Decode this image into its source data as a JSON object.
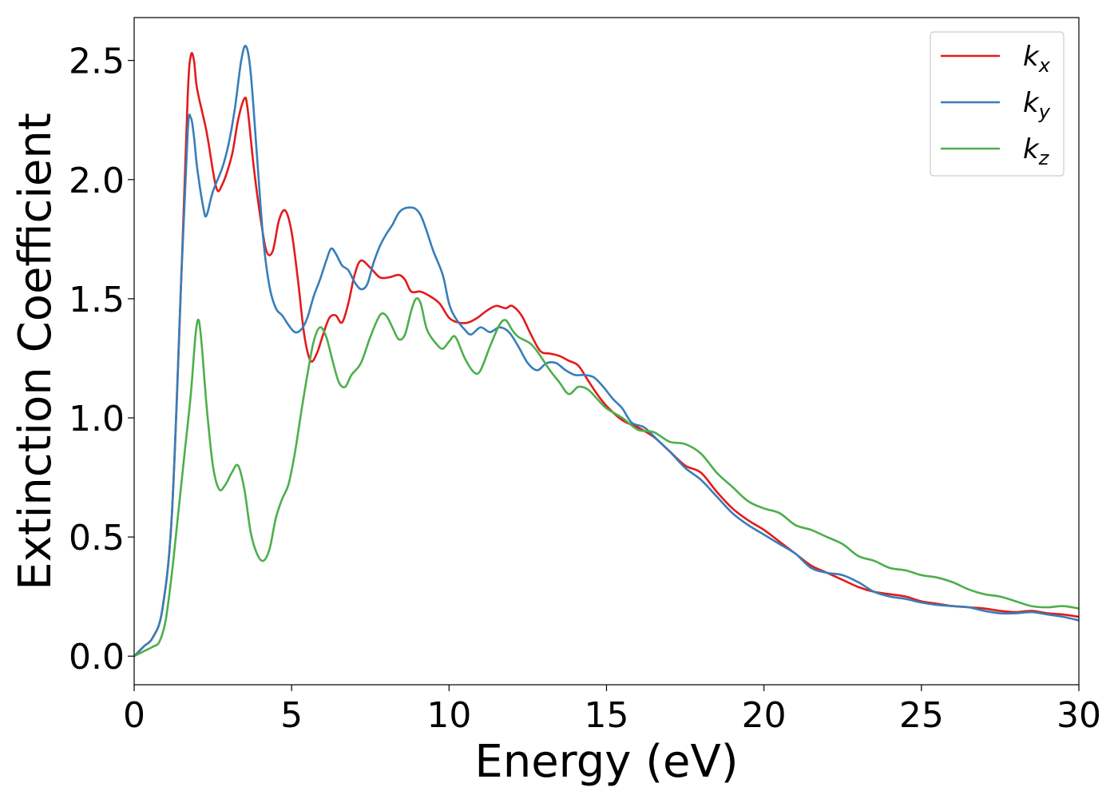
{
  "chart_data": {
    "type": "line",
    "title": "",
    "xlabel": "Energy (eV)",
    "ylabel": "Extinction Coefficient",
    "xlim": [
      0,
      30
    ],
    "ylim": [
      -0.12,
      2.68
    ],
    "xticks": [
      0,
      5,
      10,
      15,
      20,
      25,
      30
    ],
    "xtick_labels": [
      "0",
      "5",
      "10",
      "15",
      "20",
      "25",
      "30"
    ],
    "yticks": [
      0.0,
      0.5,
      1.0,
      1.5,
      2.0,
      2.5
    ],
    "ytick_labels": [
      "0.0",
      "0.5",
      "1.0",
      "1.5",
      "2.0",
      "2.5"
    ],
    "grid": false,
    "legend_position": "top-right",
    "series": [
      {
        "name": "k",
        "subscript": "x",
        "color": "#e41a1c",
        "points": [
          [
            0,
            0
          ],
          [
            0.3,
            0.04
          ],
          [
            0.6,
            0.08
          ],
          [
            0.9,
            0.2
          ],
          [
            1.2,
            0.6
          ],
          [
            1.5,
            1.6
          ],
          [
            1.7,
            2.35
          ],
          [
            1.8,
            2.52
          ],
          [
            1.9,
            2.5
          ],
          [
            2.0,
            2.38
          ],
          [
            2.3,
            2.2
          ],
          [
            2.6,
            1.97
          ],
          [
            2.8,
            1.98
          ],
          [
            3.1,
            2.1
          ],
          [
            3.3,
            2.25
          ],
          [
            3.5,
            2.34
          ],
          [
            3.6,
            2.3
          ],
          [
            3.8,
            2.05
          ],
          [
            4.0,
            1.85
          ],
          [
            4.2,
            1.7
          ],
          [
            4.4,
            1.7
          ],
          [
            4.6,
            1.83
          ],
          [
            4.8,
            1.87
          ],
          [
            5.0,
            1.78
          ],
          [
            5.2,
            1.58
          ],
          [
            5.4,
            1.35
          ],
          [
            5.6,
            1.24
          ],
          [
            5.8,
            1.27
          ],
          [
            6.0,
            1.35
          ],
          [
            6.2,
            1.42
          ],
          [
            6.4,
            1.43
          ],
          [
            6.6,
            1.4
          ],
          [
            6.8,
            1.48
          ],
          [
            7.0,
            1.6
          ],
          [
            7.2,
            1.66
          ],
          [
            7.5,
            1.63
          ],
          [
            7.8,
            1.59
          ],
          [
            8.1,
            1.59
          ],
          [
            8.4,
            1.6
          ],
          [
            8.6,
            1.58
          ],
          [
            8.8,
            1.53
          ],
          [
            9.1,
            1.53
          ],
          [
            9.4,
            1.51
          ],
          [
            9.7,
            1.48
          ],
          [
            10.0,
            1.42
          ],
          [
            10.3,
            1.4
          ],
          [
            10.6,
            1.4
          ],
          [
            10.9,
            1.42
          ],
          [
            11.2,
            1.45
          ],
          [
            11.5,
            1.47
          ],
          [
            11.8,
            1.46
          ],
          [
            12.0,
            1.47
          ],
          [
            12.3,
            1.43
          ],
          [
            12.6,
            1.35
          ],
          [
            12.9,
            1.28
          ],
          [
            13.2,
            1.27
          ],
          [
            13.5,
            1.26
          ],
          [
            13.8,
            1.24
          ],
          [
            14.1,
            1.22
          ],
          [
            14.4,
            1.16
          ],
          [
            14.7,
            1.1
          ],
          [
            15.0,
            1.05
          ],
          [
            15.5,
            0.99
          ],
          [
            16.0,
            0.96
          ],
          [
            16.5,
            0.92
          ],
          [
            17.0,
            0.86
          ],
          [
            17.5,
            0.8
          ],
          [
            18.0,
            0.77
          ],
          [
            18.5,
            0.69
          ],
          [
            19.0,
            0.62
          ],
          [
            19.5,
            0.57
          ],
          [
            20.0,
            0.53
          ],
          [
            20.5,
            0.48
          ],
          [
            21.0,
            0.43
          ],
          [
            21.5,
            0.38
          ],
          [
            22.0,
            0.35
          ],
          [
            22.5,
            0.32
          ],
          [
            23.0,
            0.29
          ],
          [
            23.5,
            0.27
          ],
          [
            24.0,
            0.26
          ],
          [
            24.5,
            0.25
          ],
          [
            25.0,
            0.23
          ],
          [
            25.5,
            0.22
          ],
          [
            26.0,
            0.21
          ],
          [
            26.5,
            0.205
          ],
          [
            27.0,
            0.2
          ],
          [
            27.5,
            0.19
          ],
          [
            28.0,
            0.185
          ],
          [
            28.5,
            0.19
          ],
          [
            29.0,
            0.18
          ],
          [
            29.5,
            0.175
          ],
          [
            30.0,
            0.165
          ]
        ]
      },
      {
        "name": "k",
        "subscript": "y",
        "color": "#377eb8",
        "points": [
          [
            0,
            0
          ],
          [
            0.3,
            0.04
          ],
          [
            0.6,
            0.08
          ],
          [
            0.9,
            0.2
          ],
          [
            1.2,
            0.6
          ],
          [
            1.5,
            1.6
          ],
          [
            1.7,
            2.2
          ],
          [
            1.8,
            2.26
          ],
          [
            1.9,
            2.18
          ],
          [
            2.0,
            2.05
          ],
          [
            2.2,
            1.88
          ],
          [
            2.3,
            1.85
          ],
          [
            2.5,
            1.95
          ],
          [
            2.8,
            2.05
          ],
          [
            3.0,
            2.15
          ],
          [
            3.2,
            2.3
          ],
          [
            3.4,
            2.5
          ],
          [
            3.55,
            2.56
          ],
          [
            3.7,
            2.45
          ],
          [
            3.9,
            2.1
          ],
          [
            4.1,
            1.75
          ],
          [
            4.3,
            1.55
          ],
          [
            4.5,
            1.46
          ],
          [
            4.7,
            1.43
          ],
          [
            4.9,
            1.39
          ],
          [
            5.1,
            1.36
          ],
          [
            5.3,
            1.37
          ],
          [
            5.5,
            1.42
          ],
          [
            5.7,
            1.51
          ],
          [
            5.9,
            1.58
          ],
          [
            6.1,
            1.66
          ],
          [
            6.25,
            1.71
          ],
          [
            6.4,
            1.69
          ],
          [
            6.6,
            1.64
          ],
          [
            6.8,
            1.62
          ],
          [
            7.0,
            1.57
          ],
          [
            7.2,
            1.54
          ],
          [
            7.4,
            1.56
          ],
          [
            7.6,
            1.65
          ],
          [
            7.8,
            1.72
          ],
          [
            8.0,
            1.77
          ],
          [
            8.2,
            1.81
          ],
          [
            8.4,
            1.86
          ],
          [
            8.6,
            1.88
          ],
          [
            8.9,
            1.88
          ],
          [
            9.1,
            1.85
          ],
          [
            9.3,
            1.78
          ],
          [
            9.5,
            1.7
          ],
          [
            9.8,
            1.6
          ],
          [
            10.0,
            1.48
          ],
          [
            10.2,
            1.42
          ],
          [
            10.5,
            1.37
          ],
          [
            10.7,
            1.35
          ],
          [
            11.0,
            1.38
          ],
          [
            11.3,
            1.36
          ],
          [
            11.6,
            1.38
          ],
          [
            11.9,
            1.36
          ],
          [
            12.2,
            1.3
          ],
          [
            12.5,
            1.23
          ],
          [
            12.8,
            1.2
          ],
          [
            13.1,
            1.23
          ],
          [
            13.4,
            1.23
          ],
          [
            13.7,
            1.2
          ],
          [
            14.0,
            1.18
          ],
          [
            14.3,
            1.18
          ],
          [
            14.6,
            1.17
          ],
          [
            14.9,
            1.13
          ],
          [
            15.2,
            1.08
          ],
          [
            15.5,
            1.04
          ],
          [
            15.8,
            0.98
          ],
          [
            16.2,
            0.96
          ],
          [
            16.6,
            0.91
          ],
          [
            17.0,
            0.86
          ],
          [
            17.5,
            0.79
          ],
          [
            18.0,
            0.74
          ],
          [
            18.5,
            0.67
          ],
          [
            19.0,
            0.6
          ],
          [
            19.5,
            0.55
          ],
          [
            20.0,
            0.51
          ],
          [
            20.5,
            0.47
          ],
          [
            21.0,
            0.43
          ],
          [
            21.5,
            0.37
          ],
          [
            22.0,
            0.35
          ],
          [
            22.5,
            0.34
          ],
          [
            23.0,
            0.31
          ],
          [
            23.5,
            0.27
          ],
          [
            24.0,
            0.25
          ],
          [
            24.5,
            0.24
          ],
          [
            25.0,
            0.225
          ],
          [
            25.5,
            0.215
          ],
          [
            26.0,
            0.21
          ],
          [
            26.5,
            0.205
          ],
          [
            27.0,
            0.19
          ],
          [
            27.5,
            0.18
          ],
          [
            28.0,
            0.18
          ],
          [
            28.5,
            0.185
          ],
          [
            29.0,
            0.175
          ],
          [
            29.5,
            0.165
          ],
          [
            30.0,
            0.15
          ]
        ]
      },
      {
        "name": "k",
        "subscript": "z",
        "color": "#4daf4a",
        "points": [
          [
            0,
            0
          ],
          [
            0.3,
            0.02
          ],
          [
            0.6,
            0.04
          ],
          [
            0.8,
            0.06
          ],
          [
            1.0,
            0.15
          ],
          [
            1.2,
            0.35
          ],
          [
            1.4,
            0.6
          ],
          [
            1.6,
            0.85
          ],
          [
            1.8,
            1.1
          ],
          [
            1.95,
            1.35
          ],
          [
            2.05,
            1.41
          ],
          [
            2.15,
            1.3
          ],
          [
            2.3,
            1.05
          ],
          [
            2.5,
            0.8
          ],
          [
            2.7,
            0.7
          ],
          [
            2.9,
            0.72
          ],
          [
            3.1,
            0.77
          ],
          [
            3.3,
            0.8
          ],
          [
            3.5,
            0.7
          ],
          [
            3.7,
            0.52
          ],
          [
            3.9,
            0.43
          ],
          [
            4.1,
            0.4
          ],
          [
            4.3,
            0.45
          ],
          [
            4.5,
            0.58
          ],
          [
            4.7,
            0.66
          ],
          [
            4.9,
            0.72
          ],
          [
            5.1,
            0.85
          ],
          [
            5.3,
            1.02
          ],
          [
            5.5,
            1.18
          ],
          [
            5.7,
            1.32
          ],
          [
            5.9,
            1.38
          ],
          [
            6.1,
            1.34
          ],
          [
            6.3,
            1.24
          ],
          [
            6.5,
            1.15
          ],
          [
            6.7,
            1.13
          ],
          [
            6.9,
            1.18
          ],
          [
            7.2,
            1.23
          ],
          [
            7.5,
            1.34
          ],
          [
            7.8,
            1.43
          ],
          [
            8.0,
            1.43
          ],
          [
            8.2,
            1.38
          ],
          [
            8.4,
            1.33
          ],
          [
            8.6,
            1.35
          ],
          [
            8.8,
            1.45
          ],
          [
            8.95,
            1.5
          ],
          [
            9.1,
            1.48
          ],
          [
            9.3,
            1.37
          ],
          [
            9.6,
            1.31
          ],
          [
            9.8,
            1.29
          ],
          [
            10.0,
            1.32
          ],
          [
            10.2,
            1.34
          ],
          [
            10.5,
            1.25
          ],
          [
            10.8,
            1.19
          ],
          [
            11.0,
            1.2
          ],
          [
            11.3,
            1.3
          ],
          [
            11.6,
            1.39
          ],
          [
            11.8,
            1.41
          ],
          [
            12.0,
            1.37
          ],
          [
            12.2,
            1.34
          ],
          [
            12.6,
            1.31
          ],
          [
            12.9,
            1.26
          ],
          [
            13.2,
            1.2
          ],
          [
            13.5,
            1.15
          ],
          [
            13.8,
            1.1
          ],
          [
            14.1,
            1.13
          ],
          [
            14.4,
            1.12
          ],
          [
            14.7,
            1.08
          ],
          [
            15.0,
            1.04
          ],
          [
            15.5,
            1.0
          ],
          [
            16.0,
            0.95
          ],
          [
            16.5,
            0.94
          ],
          [
            17.0,
            0.9
          ],
          [
            17.5,
            0.89
          ],
          [
            18.0,
            0.85
          ],
          [
            18.5,
            0.77
          ],
          [
            19.0,
            0.71
          ],
          [
            19.5,
            0.65
          ],
          [
            20.0,
            0.62
          ],
          [
            20.5,
            0.6
          ],
          [
            21.0,
            0.55
          ],
          [
            21.5,
            0.53
          ],
          [
            22.0,
            0.5
          ],
          [
            22.5,
            0.47
          ],
          [
            23.0,
            0.42
          ],
          [
            23.5,
            0.4
          ],
          [
            24.0,
            0.37
          ],
          [
            24.5,
            0.36
          ],
          [
            25.0,
            0.34
          ],
          [
            25.5,
            0.33
          ],
          [
            26.0,
            0.31
          ],
          [
            26.5,
            0.28
          ],
          [
            27.0,
            0.26
          ],
          [
            27.5,
            0.25
          ],
          [
            28.0,
            0.23
          ],
          [
            28.5,
            0.21
          ],
          [
            29.0,
            0.205
          ],
          [
            29.5,
            0.21
          ],
          [
            30.0,
            0.2
          ]
        ]
      }
    ]
  }
}
